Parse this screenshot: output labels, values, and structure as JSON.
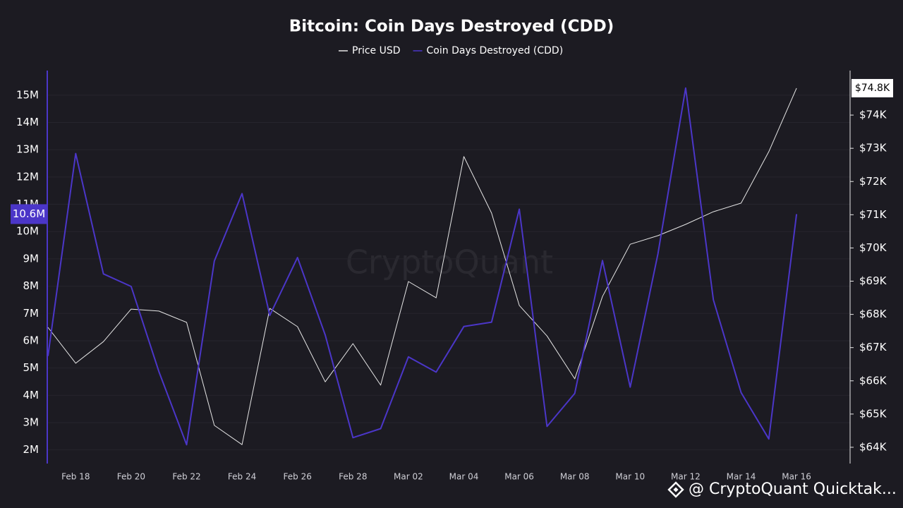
{
  "chart_data": {
    "type": "line",
    "title": "Bitcoin: Coin Days Destroyed (CDD)",
    "watermark": "CryptoQuant",
    "footer_credit": "@ CryptoQuant Quicktak...",
    "categories": [
      null,
      "Feb 18",
      null,
      "Feb 20",
      null,
      "Feb 22",
      null,
      "Feb 24",
      null,
      "Feb 26",
      null,
      "Feb 28",
      null,
      "Mar 02",
      null,
      "Mar 04",
      null,
      "Mar 06",
      null,
      "Mar 08",
      null,
      "Mar 10",
      null,
      "Mar 12",
      null,
      "Mar 14",
      null,
      "Mar 16"
    ],
    "series": [
      {
        "name": "Price USD",
        "color": "#e6e6e6",
        "axis": "y2",
        "last_label": "$74.8K",
        "values": [
          67610,
          66530,
          67180,
          68160,
          68100,
          67760,
          64660,
          64080,
          68180,
          67630,
          65970,
          67120,
          65870,
          68990,
          68500,
          72750,
          71050,
          68270,
          67350,
          66060,
          68540,
          70110,
          70370,
          70710,
          71090,
          71350,
          72900,
          74810
        ]
      },
      {
        "name": "Coin Days Destroyed (CDD)",
        "color": "#4b36c8",
        "last_label": "10.6M",
        "values": [
          5440000,
          12860000,
          8450000,
          7990000,
          4870000,
          2190000,
          8920000,
          11390000,
          6930000,
          9050000,
          6210000,
          2450000,
          2780000,
          5410000,
          4850000,
          6520000,
          6680000,
          10820000,
          2860000,
          4070000,
          8940000,
          4300000,
          9180000,
          15260000,
          7500000,
          4100000,
          2400000,
          10640000
        ]
      }
    ],
    "ylim": [
      1500000,
      15900000
    ],
    "yticks": [
      {
        "value": 2000000,
        "label": "2M"
      },
      {
        "value": 3000000,
        "label": "3M"
      },
      {
        "value": 4000000,
        "label": "4M"
      },
      {
        "value": 5000000,
        "label": "5M"
      },
      {
        "value": 6000000,
        "label": "6M"
      },
      {
        "value": 7000000,
        "label": "7M"
      },
      {
        "value": 8000000,
        "label": "8M"
      },
      {
        "value": 9000000,
        "label": "9M"
      },
      {
        "value": 10000000,
        "label": "10M"
      },
      {
        "value": 11000000,
        "label": "11M"
      },
      {
        "value": 12000000,
        "label": "12M"
      },
      {
        "value": 13000000,
        "label": "13M"
      },
      {
        "value": 14000000,
        "label": "14M"
      },
      {
        "value": 15000000,
        "label": "15M"
      }
    ],
    "y2lim": [
      63510,
      75340
    ],
    "y2ticks": [
      {
        "value": 64000,
        "label": "$64K"
      },
      {
        "value": 65000,
        "label": "$65K"
      },
      {
        "value": 66000,
        "label": "$66K"
      },
      {
        "value": 67000,
        "label": "$67K"
      },
      {
        "value": 68000,
        "label": "$68K"
      },
      {
        "value": 69000,
        "label": "$69K"
      },
      {
        "value": 70000,
        "label": "$70K"
      },
      {
        "value": 71000,
        "label": "$71K"
      },
      {
        "value": 72000,
        "label": "$72K"
      },
      {
        "value": 73000,
        "label": "$73K"
      },
      {
        "value": 74000,
        "label": "$74K"
      }
    ],
    "grid": true,
    "legend": "top"
  }
}
